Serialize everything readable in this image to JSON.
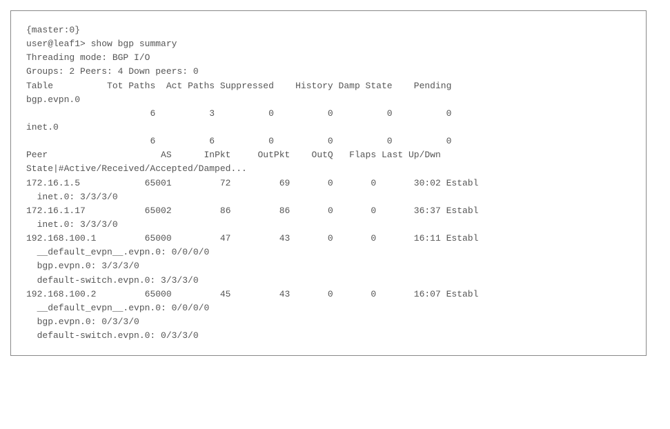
{
  "context_line": "{master:0}",
  "prompt": "user@leaf1> ",
  "command": "show bgp summary",
  "threading_mode_label": "Threading mode: ",
  "threading_mode_value": "BGP I/O",
  "groups_line": "Groups: 2 Peers: 4 Down peers: 0",
  "table_header": {
    "table": "Table",
    "tot_paths": "Tot Paths",
    "act_paths": "Act Paths",
    "suppressed": "Suppressed",
    "history": "History",
    "damp_state": "Damp State",
    "pending": "Pending"
  },
  "tables": [
    {
      "name": "bgp.evpn.0",
      "tot": "6",
      "act": "3",
      "supp": "0",
      "hist": "0",
      "damp": "0",
      "pend": "0"
    },
    {
      "name": "inet.0",
      "tot": "6",
      "act": "6",
      "supp": "0",
      "hist": "0",
      "damp": "0",
      "pend": "0"
    }
  ],
  "peer_header": {
    "peer": "Peer",
    "as": "AS",
    "inpkt": "InPkt",
    "outpkt": "OutPkt",
    "outq": "OutQ",
    "flaps": "Flaps",
    "last": "Last Up/Dwn",
    "state_line": "State|#Active/Received/Accepted/Damped..."
  },
  "peers": [
    {
      "ip": "172.16.1.5",
      "as": "65001",
      "inpkt": "72",
      "outpkt": "69",
      "outq": "0",
      "flaps": "0",
      "updwn": "30:02",
      "state": "Establ",
      "sub1": "  inet.0: 3/3/3/0"
    },
    {
      "ip": "172.16.1.17",
      "as": "65002",
      "inpkt": "86",
      "outpkt": "86",
      "outq": "0",
      "flaps": "0",
      "updwn": "36:37",
      "state": "Establ",
      "sub1": "  inet.0: 3/3/3/0"
    },
    {
      "ip": "192.168.100.1",
      "as": "65000",
      "inpkt": "47",
      "outpkt": "43",
      "outq": "0",
      "flaps": "0",
      "updwn": "16:11",
      "state": "Establ",
      "sub1": "  __default_evpn__.evpn.0: 0/0/0/0",
      "sub2": "  bgp.evpn.0: 3/3/3/0",
      "sub3": "  default-switch.evpn.0: 3/3/3/0"
    },
    {
      "ip": "192.168.100.2",
      "as": "65000",
      "inpkt": "45",
      "outpkt": "43",
      "outq": "0",
      "flaps": "0",
      "updwn": "16:07",
      "state": "Establ",
      "sub1": "  __default_evpn__.evpn.0: 0/0/0/0",
      "sub2": "  bgp.evpn.0: 0/3/3/0",
      "sub3": "  default-switch.evpn.0: 0/3/3/0"
    }
  ]
}
